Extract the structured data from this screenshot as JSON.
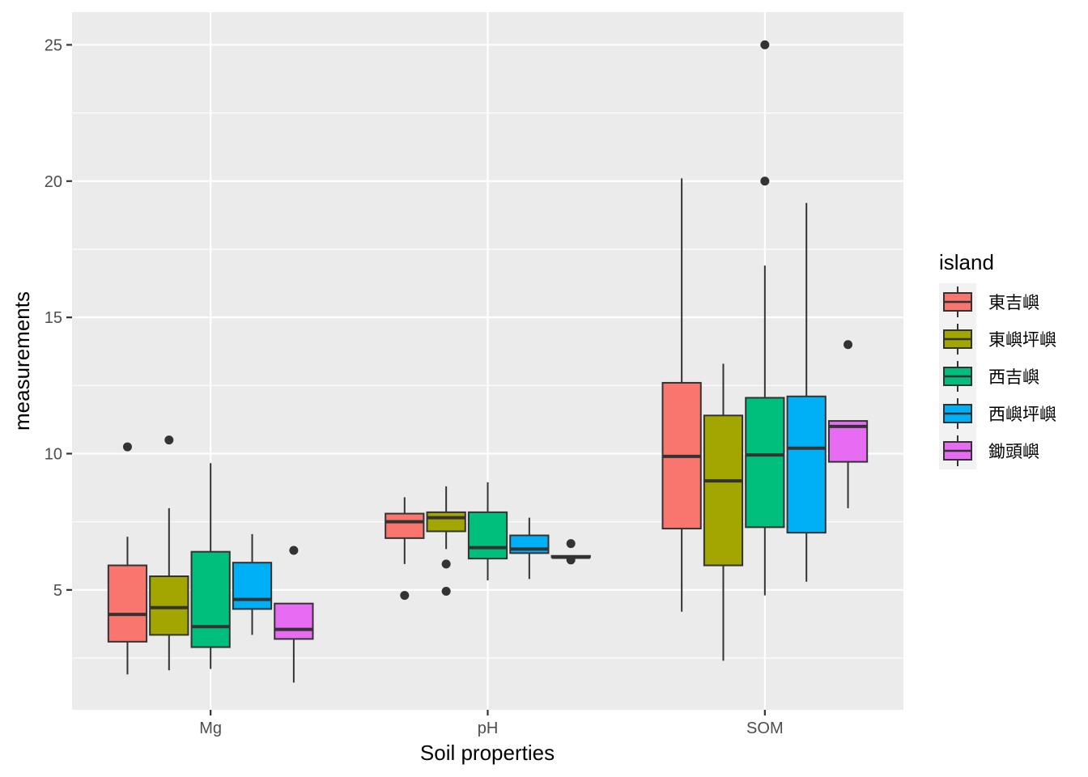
{
  "chart_data": {
    "type": "boxplot",
    "xlabel": "Soil properties",
    "ylabel": "measurements",
    "categories": [
      "Mg",
      "pH",
      "SOM"
    ],
    "ylim": [
      0.6,
      26.2
    ],
    "yticks": [
      5,
      10,
      15,
      20,
      25
    ],
    "grid": true,
    "legend": {
      "title": "island",
      "placement": "right"
    },
    "series": [
      {
        "name": "東吉嶼",
        "color": "#F8766D",
        "boxes": [
          {
            "category": "Mg",
            "lower_whisker": 1.9,
            "q1": 3.1,
            "median": 4.1,
            "q3": 5.9,
            "upper_whisker": 6.95,
            "outliers": [
              10.25
            ]
          },
          {
            "category": "pH",
            "lower_whisker": 5.95,
            "q1": 6.9,
            "median": 7.5,
            "q3": 7.8,
            "upper_whisker": 8.4,
            "outliers": [
              4.8
            ]
          },
          {
            "category": "SOM",
            "lower_whisker": 4.2,
            "q1": 7.25,
            "median": 9.9,
            "q3": 12.6,
            "upper_whisker": 20.1,
            "outliers": []
          }
        ]
      },
      {
        "name": "東嶼坪嶼",
        "color": "#A3A500",
        "boxes": [
          {
            "category": "Mg",
            "lower_whisker": 2.05,
            "q1": 3.35,
            "median": 4.35,
            "q3": 5.5,
            "upper_whisker": 8.0,
            "outliers": [
              10.5
            ]
          },
          {
            "category": "pH",
            "lower_whisker": 6.5,
            "q1": 7.15,
            "median": 7.65,
            "q3": 7.85,
            "upper_whisker": 8.8,
            "outliers": [
              5.95,
              4.95
            ]
          },
          {
            "category": "SOM",
            "lower_whisker": 2.4,
            "q1": 5.9,
            "median": 9.0,
            "q3": 11.4,
            "upper_whisker": 13.3,
            "outliers": []
          }
        ]
      },
      {
        "name": "西吉嶼",
        "color": "#00BF7D",
        "boxes": [
          {
            "category": "Mg",
            "lower_whisker": 2.1,
            "q1": 2.9,
            "median": 3.65,
            "q3": 6.4,
            "upper_whisker": 9.65,
            "outliers": []
          },
          {
            "category": "pH",
            "lower_whisker": 5.35,
            "q1": 6.15,
            "median": 6.55,
            "q3": 7.85,
            "upper_whisker": 8.95,
            "outliers": []
          },
          {
            "category": "SOM",
            "lower_whisker": 4.8,
            "q1": 7.3,
            "median": 9.95,
            "q3": 12.05,
            "upper_whisker": 16.9,
            "outliers": [
              20.0,
              25.0
            ]
          }
        ]
      },
      {
        "name": "西嶼坪嶼",
        "color": "#00B0F6",
        "boxes": [
          {
            "category": "Mg",
            "lower_whisker": 3.35,
            "q1": 4.3,
            "median": 4.65,
            "q3": 6.0,
            "upper_whisker": 7.05,
            "outliers": []
          },
          {
            "category": "pH",
            "lower_whisker": 5.4,
            "q1": 6.35,
            "median": 6.5,
            "q3": 7.0,
            "upper_whisker": 7.65,
            "outliers": []
          },
          {
            "category": "SOM",
            "lower_whisker": 5.3,
            "q1": 7.1,
            "median": 10.2,
            "q3": 12.1,
            "upper_whisker": 19.2,
            "outliers": []
          }
        ]
      },
      {
        "name": "鋤頭嶼",
        "color": "#E76BF3",
        "boxes": [
          {
            "category": "Mg",
            "lower_whisker": 1.6,
            "q1": 3.2,
            "median": 3.55,
            "q3": 4.5,
            "upper_whisker": 4.5,
            "outliers": [
              6.45
            ]
          },
          {
            "category": "pH",
            "lower_whisker": 6.2,
            "q1": 6.2,
            "median": 6.2,
            "q3": 6.25,
            "upper_whisker": 6.25,
            "outliers": [
              6.7,
              6.1
            ]
          },
          {
            "category": "SOM",
            "lower_whisker": 8.0,
            "q1": 9.7,
            "median": 11.0,
            "q3": 11.2,
            "upper_whisker": 11.2,
            "outliers": [
              14.0
            ]
          }
        ]
      }
    ]
  }
}
